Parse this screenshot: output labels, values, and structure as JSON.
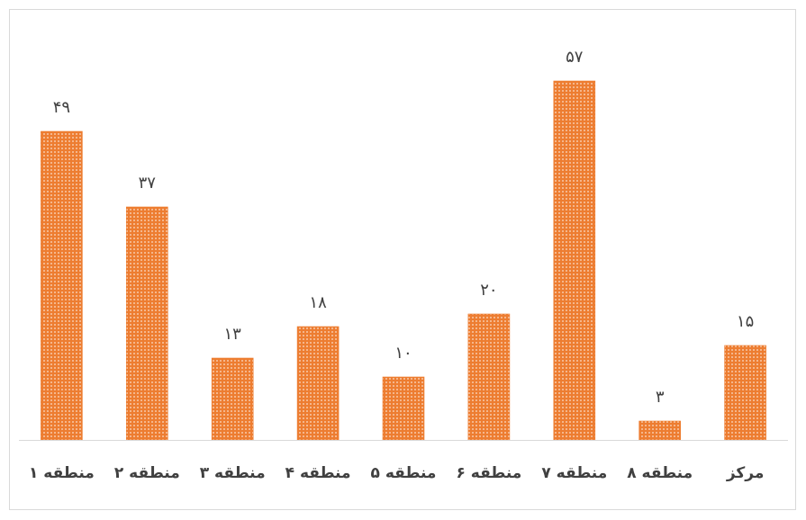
{
  "chart_data": {
    "type": "bar",
    "title": "",
    "xlabel": "",
    "ylabel": "",
    "categories": [
      "منطقه ۱",
      "منطقه ۲",
      "منطقه ۳",
      "منطقه ۴",
      "منطقه ۵",
      "منطقه ۶",
      "منطقه ۷",
      "منطقه ۸",
      "مرکز"
    ],
    "values": [
      49,
      37,
      13,
      18,
      10,
      20,
      57,
      3,
      15
    ],
    "value_labels": [
      "۴۹",
      "۳۷",
      "۱۳",
      "۱۸",
      "۱۰",
      "۲۰",
      "۵۷",
      "۳",
      "۱۵"
    ],
    "ylim": [
      0,
      62
    ],
    "grid": false,
    "legend": "none",
    "bar_color": "#ed7d31",
    "bar_pattern": "dotted"
  }
}
